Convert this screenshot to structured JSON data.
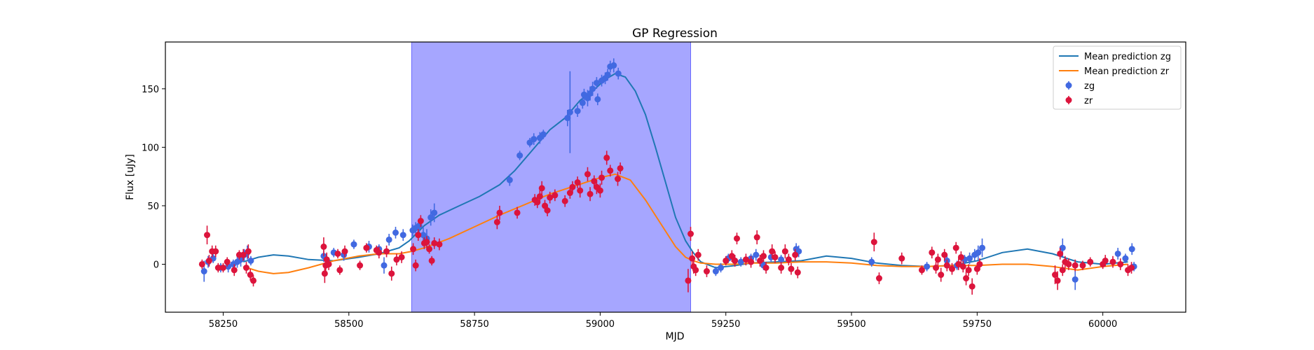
{
  "chart_data": {
    "type": "scatter",
    "title": "GP Regression",
    "xlabel": "MJD",
    "ylabel": "Flux [uJy]",
    "xlim": [
      58135,
      60165
    ],
    "ylim": [
      -41,
      190
    ],
    "xticks": [
      58250,
      58500,
      58750,
      59000,
      59250,
      59500,
      59750,
      60000
    ],
    "yticks": [
      0,
      50,
      100,
      150
    ],
    "grid": false,
    "legend_position": "top-right",
    "highlight_region": {
      "x_start": 58625,
      "x_end": 59180,
      "color": "#a6a6ff"
    },
    "colors": {
      "zg": "#4169e1",
      "zr": "#dc143c",
      "mean_zg": "#1f77b4",
      "mean_zr": "#ff7f0e"
    },
    "lines": [
      {
        "name": "Mean prediction zg",
        "x": [
          58290,
          58320,
          58350,
          58380,
          58420,
          58470,
          58520,
          58560,
          58600,
          58620,
          58650,
          58680,
          58720,
          58760,
          58800,
          58830,
          58870,
          58900,
          58930,
          58960,
          58990,
          59010,
          59030,
          59050,
          59070,
          59090,
          59110,
          59130,
          59150,
          59170,
          59185,
          59200,
          59230,
          59270,
          59300,
          59350,
          59400,
          59450,
          59500,
          59550,
          59600,
          59650,
          59700,
          59750,
          59800,
          59850,
          59900,
          59950,
          60000,
          60050
        ],
        "y": [
          2,
          6,
          8,
          7,
          4,
          3,
          6,
          9,
          14,
          20,
          33,
          42,
          50,
          58,
          68,
          80,
          100,
          115,
          125,
          140,
          150,
          158,
          163,
          160,
          148,
          128,
          100,
          70,
          40,
          20,
          10,
          2,
          -3,
          -1,
          1,
          2,
          3,
          7,
          5,
          1,
          -1,
          -2,
          -1,
          3,
          10,
          13,
          9,
          2,
          0,
          2
        ]
      },
      {
        "name": "Mean prediction zr",
        "x": [
          58290,
          58320,
          58350,
          58380,
          58420,
          58470,
          58520,
          58560,
          58600,
          58625,
          58650,
          58700,
          58750,
          58800,
          58850,
          58900,
          58950,
          59000,
          59030,
          59060,
          59090,
          59120,
          59150,
          59170,
          59185,
          59200,
          59230,
          59270,
          59300,
          59350,
          59400,
          59450,
          59500,
          59550,
          59600,
          59650,
          59700,
          59750,
          59800,
          59850,
          59900,
          59950,
          60000,
          60050
        ],
        "y": [
          -2,
          -6,
          -8,
          -7,
          -3,
          3,
          7,
          9,
          9,
          11,
          14,
          22,
          32,
          42,
          51,
          60,
          67,
          74,
          77,
          72,
          55,
          35,
          15,
          6,
          3,
          1,
          0,
          0,
          1,
          1,
          2,
          2,
          1,
          -1,
          -2,
          -2,
          -1,
          -1,
          0,
          0,
          -2,
          -5,
          -2,
          0
        ]
      }
    ],
    "series": [
      {
        "name": "zg",
        "points": [
          [
            58212,
            -6,
            9
          ],
          [
            58220,
            2,
            5
          ],
          [
            58230,
            5,
            4
          ],
          [
            58245,
            -3,
            4
          ],
          [
            58260,
            -2,
            5
          ],
          [
            58270,
            0,
            4
          ],
          [
            58278,
            2,
            5
          ],
          [
            58285,
            4,
            6
          ],
          [
            58292,
            8,
            5
          ],
          [
            58298,
            10,
            6
          ],
          [
            58305,
            3,
            4
          ],
          [
            58450,
            7,
            5
          ],
          [
            58470,
            10,
            4
          ],
          [
            58490,
            8,
            5
          ],
          [
            58510,
            17,
            4
          ],
          [
            58540,
            15,
            5
          ],
          [
            58560,
            13,
            4
          ],
          [
            58570,
            -1,
            7
          ],
          [
            58580,
            21,
            5
          ],
          [
            58593,
            27,
            5
          ],
          [
            58608,
            25,
            5
          ],
          [
            58627,
            29,
            5
          ],
          [
            58633,
            31,
            5
          ],
          [
            58640,
            33,
            6
          ],
          [
            58648,
            25,
            7
          ],
          [
            58655,
            22,
            8
          ],
          [
            58663,
            40,
            7
          ],
          [
            58670,
            44,
            8
          ],
          [
            58820,
            72,
            5
          ],
          [
            58840,
            93,
            4
          ],
          [
            58860,
            104,
            4
          ],
          [
            58868,
            107,
            5
          ],
          [
            58880,
            108,
            5
          ],
          [
            58887,
            111,
            4
          ],
          [
            58935,
            125,
            7
          ],
          [
            58940,
            130,
            35
          ],
          [
            58955,
            131,
            5
          ],
          [
            58965,
            138,
            5
          ],
          [
            58968,
            145,
            5
          ],
          [
            58975,
            142,
            7
          ],
          [
            58980,
            146,
            6
          ],
          [
            58985,
            150,
            6
          ],
          [
            58993,
            155,
            5
          ],
          [
            58995,
            141,
            5
          ],
          [
            59003,
            157,
            5
          ],
          [
            59010,
            159,
            5
          ],
          [
            59015,
            162,
            5
          ],
          [
            59020,
            169,
            5
          ],
          [
            59027,
            170,
            6
          ],
          [
            59036,
            163,
            5
          ],
          [
            59230,
            -6,
            4
          ],
          [
            59240,
            -3,
            4
          ],
          [
            59255,
            5,
            4
          ],
          [
            59268,
            3,
            5
          ],
          [
            59280,
            2,
            4
          ],
          [
            59300,
            5,
            4
          ],
          [
            59310,
            8,
            5
          ],
          [
            59325,
            -1,
            4
          ],
          [
            59340,
            6,
            4
          ],
          [
            59360,
            4,
            4
          ],
          [
            59390,
            13,
            5
          ],
          [
            59395,
            11,
            5
          ],
          [
            59540,
            2,
            4
          ],
          [
            59650,
            -2,
            4
          ],
          [
            59690,
            3,
            5
          ],
          [
            59710,
            -1,
            4
          ],
          [
            59725,
            4,
            4
          ],
          [
            59735,
            5,
            5
          ],
          [
            59745,
            8,
            5
          ],
          [
            59752,
            10,
            6
          ],
          [
            59760,
            14,
            8
          ],
          [
            59920,
            14,
            8
          ],
          [
            59945,
            -13,
            9
          ],
          [
            60030,
            9,
            5
          ],
          [
            60045,
            5,
            4
          ],
          [
            60058,
            13,
            5
          ],
          [
            60062,
            -2,
            4
          ]
        ]
      },
      {
        "name": "zr",
        "points": [
          [
            58208,
            0,
            4
          ],
          [
            58218,
            25,
            8
          ],
          [
            58222,
            3,
            5
          ],
          [
            58228,
            11,
            5
          ],
          [
            58235,
            11,
            5
          ],
          [
            58240,
            -3,
            4
          ],
          [
            58250,
            -3,
            4
          ],
          [
            58258,
            2,
            4
          ],
          [
            58272,
            -5,
            5
          ],
          [
            58282,
            8,
            4
          ],
          [
            58290,
            8,
            5
          ],
          [
            58296,
            -3,
            5
          ],
          [
            58300,
            11,
            6
          ],
          [
            58304,
            -9,
            5
          ],
          [
            58310,
            -14,
            5
          ],
          [
            58450,
            15,
            8
          ],
          [
            58452,
            -8,
            8
          ],
          [
            58454,
            -1,
            6
          ],
          [
            58456,
            4,
            6
          ],
          [
            58460,
            0,
            5
          ],
          [
            58478,
            9,
            4
          ],
          [
            58482,
            -5,
            4
          ],
          [
            58492,
            11,
            5
          ],
          [
            58522,
            -1,
            4
          ],
          [
            58535,
            14,
            4
          ],
          [
            58555,
            12,
            4
          ],
          [
            58560,
            10,
            5
          ],
          [
            58575,
            11,
            5
          ],
          [
            58585,
            -8,
            6
          ],
          [
            58595,
            4,
            5
          ],
          [
            58605,
            6,
            5
          ],
          [
            58628,
            13,
            5
          ],
          [
            58633,
            -1,
            5
          ],
          [
            58638,
            25,
            5
          ],
          [
            58643,
            37,
            5
          ],
          [
            58650,
            18,
            5
          ],
          [
            58655,
            19,
            5
          ],
          [
            58660,
            13,
            4
          ],
          [
            58665,
            3,
            4
          ],
          [
            58670,
            18,
            5
          ],
          [
            58680,
            17,
            5
          ],
          [
            58795,
            36,
            6
          ],
          [
            58800,
            44,
            6
          ],
          [
            58835,
            44,
            5
          ],
          [
            58870,
            55,
            5
          ],
          [
            58875,
            53,
            5
          ],
          [
            58880,
            58,
            6
          ],
          [
            58884,
            65,
            6
          ],
          [
            58890,
            50,
            5
          ],
          [
            58895,
            46,
            5
          ],
          [
            58900,
            57,
            5
          ],
          [
            58910,
            59,
            5
          ],
          [
            58930,
            54,
            5
          ],
          [
            58940,
            61,
            5
          ],
          [
            58945,
            66,
            5
          ],
          [
            58955,
            70,
            5
          ],
          [
            58960,
            63,
            6
          ],
          [
            58975,
            77,
            6
          ],
          [
            58980,
            60,
            6
          ],
          [
            58988,
            71,
            5
          ],
          [
            58993,
            66,
            6
          ],
          [
            59000,
            63,
            6
          ],
          [
            59003,
            74,
            6
          ],
          [
            59013,
            91,
            6
          ],
          [
            59020,
            80,
            5
          ],
          [
            59035,
            73,
            6
          ],
          [
            59040,
            82,
            5
          ],
          [
            59175,
            -14,
            10
          ],
          [
            59180,
            26,
            6
          ],
          [
            59183,
            5,
            6
          ],
          [
            59186,
            -2,
            6
          ],
          [
            59190,
            -5,
            5
          ],
          [
            59195,
            8,
            5
          ],
          [
            59212,
            -6,
            5
          ],
          [
            59250,
            3,
            4
          ],
          [
            59262,
            7,
            5
          ],
          [
            59268,
            3,
            5
          ],
          [
            59272,
            22,
            5
          ],
          [
            59290,
            4,
            5
          ],
          [
            59300,
            2,
            5
          ],
          [
            59312,
            23,
            6
          ],
          [
            59318,
            3,
            5
          ],
          [
            59325,
            7,
            5
          ],
          [
            59330,
            -3,
            5
          ],
          [
            59342,
            11,
            6
          ],
          [
            59348,
            6,
            5
          ],
          [
            59360,
            -3,
            5
          ],
          [
            59368,
            11,
            6
          ],
          [
            59375,
            4,
            5
          ],
          [
            59380,
            -4,
            5
          ],
          [
            59388,
            8,
            5
          ],
          [
            59393,
            -7,
            5
          ],
          [
            59545,
            19,
            8
          ],
          [
            59555,
            -12,
            5
          ],
          [
            59600,
            5,
            5
          ],
          [
            59640,
            -5,
            4
          ],
          [
            59660,
            10,
            5
          ],
          [
            59668,
            -3,
            5
          ],
          [
            59672,
            4,
            5
          ],
          [
            59678,
            -9,
            6
          ],
          [
            59685,
            8,
            5
          ],
          [
            59690,
            -1,
            5
          ],
          [
            59700,
            -4,
            5
          ],
          [
            59708,
            14,
            5
          ],
          [
            59713,
            0,
            5
          ],
          [
            59718,
            6,
            5
          ],
          [
            59722,
            -2,
            5
          ],
          [
            59728,
            -12,
            6
          ],
          [
            59733,
            -5,
            5
          ],
          [
            59740,
            -19,
            7
          ],
          [
            59750,
            -4,
            5
          ],
          [
            59755,
            0,
            5
          ],
          [
            59905,
            -9,
            8
          ],
          [
            59910,
            -14,
            8
          ],
          [
            59915,
            9,
            5
          ],
          [
            59920,
            -5,
            5
          ],
          [
            59925,
            2,
            5
          ],
          [
            59932,
            0,
            5
          ],
          [
            59945,
            -1,
            5
          ],
          [
            59960,
            -1,
            4
          ],
          [
            59975,
            2,
            4
          ],
          [
            60000,
            0,
            4
          ],
          [
            60005,
            3,
            5
          ],
          [
            60020,
            2,
            5
          ],
          [
            60035,
            0,
            5
          ],
          [
            60050,
            -5,
            5
          ],
          [
            60057,
            -3,
            5
          ]
        ]
      }
    ],
    "legend": [
      "Mean prediction zg",
      "Mean prediction zr",
      "zg",
      "zr"
    ]
  }
}
